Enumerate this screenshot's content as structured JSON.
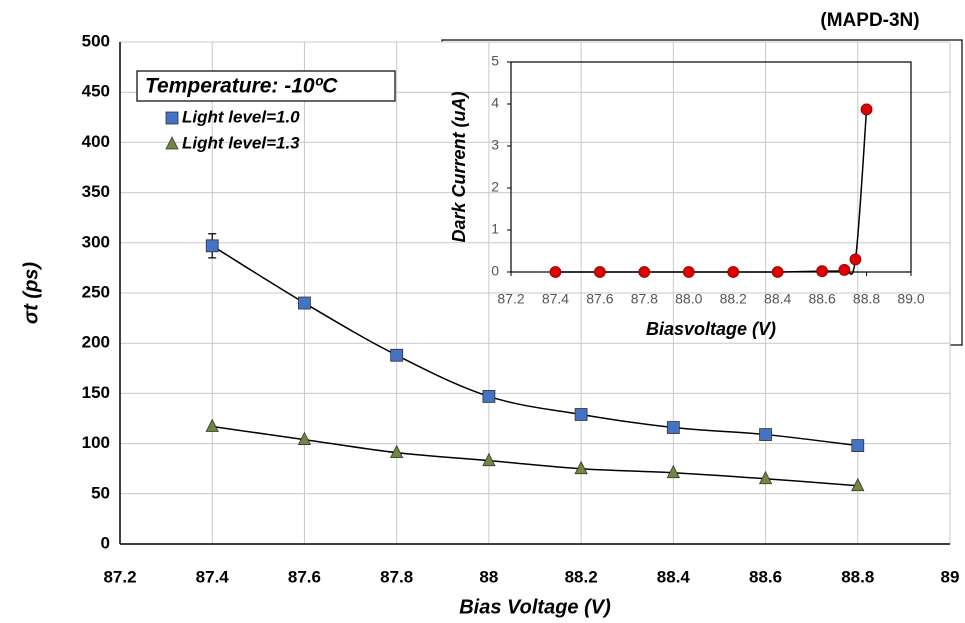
{
  "chart_data": [
    {
      "type": "scatter",
      "annotation": "(MAPD-3N)",
      "legend_title": "Temperature: -10ºC",
      "xlabel": "Bias Voltage (V)",
      "ylabel": "σt (ps)",
      "x": [
        87.4,
        87.6,
        87.8,
        88.0,
        88.2,
        88.4,
        88.6,
        88.8
      ],
      "series": [
        {
          "name": "Light level=1.0",
          "color": "#4472c4",
          "marker": "square",
          "values": [
            297,
            240,
            188,
            147,
            129,
            116,
            109,
            98
          ],
          "errors": [
            12,
            null,
            null,
            null,
            null,
            null,
            null,
            null
          ]
        },
        {
          "name": "Light level=1.3",
          "color": "#70883e",
          "marker": "triangle",
          "values": [
            117,
            104,
            91,
            83,
            75,
            71,
            65,
            58
          ]
        }
      ],
      "xlim": [
        87.2,
        89
      ],
      "xticks": [
        87.2,
        87.4,
        87.6,
        87.8,
        88,
        88.2,
        88.4,
        88.6,
        88.8,
        89
      ],
      "ylim": [
        0,
        500
      ],
      "yticks": [
        0,
        50,
        100,
        150,
        200,
        250,
        300,
        350,
        400,
        450,
        500
      ],
      "grid": true
    },
    {
      "type": "scatter",
      "xlabel": "Biasvoltage (V)",
      "ylabel": "Dark Current (uA)",
      "x": [
        87.4,
        87.6,
        87.8,
        88.0,
        88.2,
        88.4,
        88.6,
        88.7,
        88.75,
        88.8
      ],
      "series": [
        {
          "name": null,
          "color": "#e00000",
          "marker": "circle",
          "values": [
            0,
            0,
            0,
            0,
            0,
            0,
            0.02,
            0.05,
            0.3,
            3.87
          ]
        }
      ],
      "xlim": [
        87.2,
        89.0
      ],
      "xticks": [
        87.2,
        87.4,
        87.6,
        87.8,
        {
          "value": 88.0,
          "label": "88.0"
        },
        88.2,
        88.4,
        88.6,
        88.8,
        {
          "value": 89.0,
          "label": "89.0"
        }
      ],
      "ylim": [
        0,
        5
      ],
      "yticks": [
        0,
        1,
        2,
        3,
        4,
        5
      ],
      "grid": false
    }
  ]
}
